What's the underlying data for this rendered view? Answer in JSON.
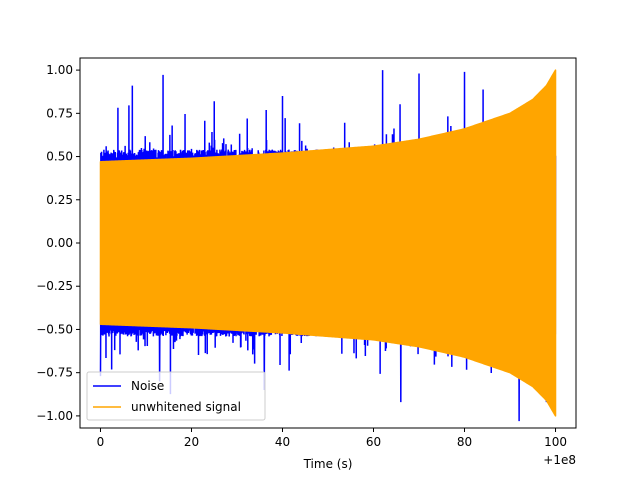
{
  "chart_data": {
    "type": "line",
    "title": "",
    "xlabel": "Time (s)",
    "ylabel": "",
    "x_offset_label": "+1e8",
    "xlim": [
      -4.5,
      104.5
    ],
    "ylim": [
      -1.07,
      1.07
    ],
    "x_ticks": [
      0,
      20,
      40,
      60,
      80,
      100
    ],
    "x_tick_labels": [
      "0",
      "20",
      "40",
      "60",
      "80",
      "100"
    ],
    "y_ticks": [
      1.0,
      0.75,
      0.5,
      0.25,
      0.0,
      -0.25,
      -0.5,
      -0.75,
      -1.0
    ],
    "y_tick_labels": [
      "1.00",
      "0.75",
      "0.50",
      "0.25",
      "0.00",
      "−0.25",
      "−0.50",
      "−0.75",
      "−1.00"
    ],
    "legend_position": "lower-left",
    "series": [
      {
        "name": "Noise",
        "color": "#0000ff",
        "x_range": [
          0,
          100
        ],
        "typical_amplitude": 0.52,
        "max_value": 1.0,
        "min_value": -1.03,
        "peaks": [
          {
            "x": 7,
            "y": 0.91
          },
          {
            "x": 25,
            "y": 0.82
          },
          {
            "x": 40,
            "y": 0.85
          },
          {
            "x": 62,
            "y": 1.0
          },
          {
            "x": 70,
            "y": 0.98
          },
          {
            "x": 80,
            "y": 0.99
          },
          {
            "x": 92,
            "y": 0.85
          },
          {
            "x": 0,
            "y": -0.77
          },
          {
            "x": 13,
            "y": -0.8
          },
          {
            "x": 36,
            "y": -0.85
          },
          {
            "x": 66,
            "y": -0.92
          },
          {
            "x": 92,
            "y": -1.03
          },
          {
            "x": 98,
            "y": -0.92
          }
        ]
      },
      {
        "name": "unwhitened signal",
        "color": "#ffa500",
        "x_range": [
          0,
          100
        ],
        "envelope": [
          {
            "x": 0,
            "y": 0.47
          },
          {
            "x": 20,
            "y": 0.49
          },
          {
            "x": 40,
            "y": 0.52
          },
          {
            "x": 60,
            "y": 0.56
          },
          {
            "x": 70,
            "y": 0.6
          },
          {
            "x": 80,
            "y": 0.66
          },
          {
            "x": 90,
            "y": 0.75
          },
          {
            "x": 95,
            "y": 0.83
          },
          {
            "x": 98,
            "y": 0.91
          },
          {
            "x": 100,
            "y": 1.0
          }
        ]
      }
    ]
  }
}
